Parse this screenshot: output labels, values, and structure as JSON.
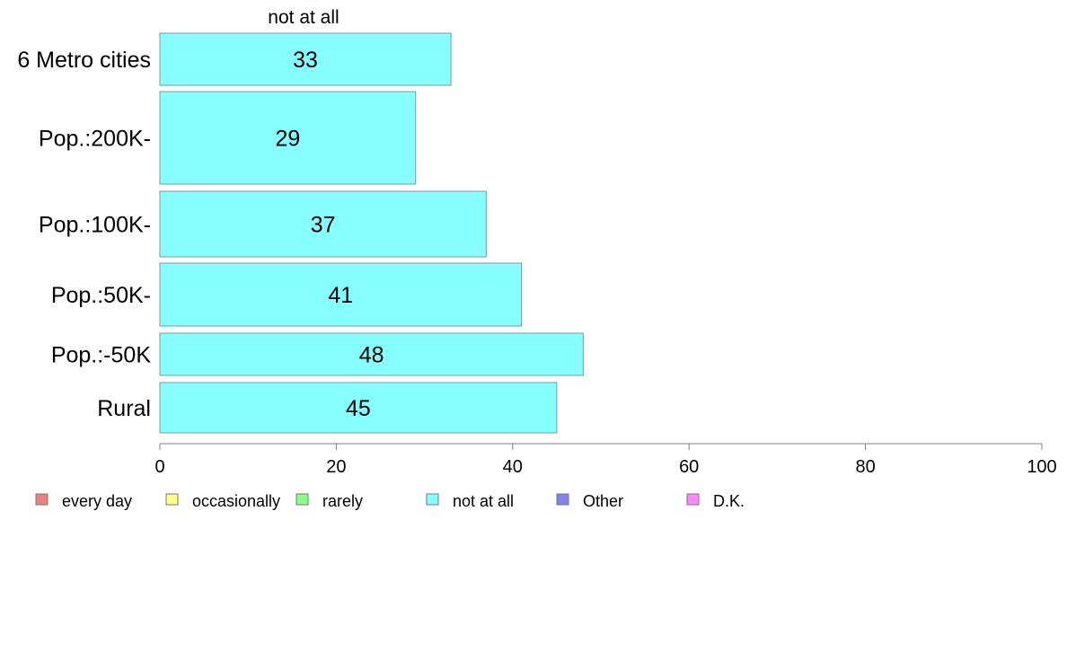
{
  "chart_data": {
    "type": "bar",
    "orientation": "horizontal",
    "stacked": true,
    "column_header": "not at all",
    "categories": [
      "6 Metro cities",
      "Pop.:200K-",
      "Pop.:100K-",
      "Pop.:50K-",
      "Pop.:-50K",
      "Rural"
    ],
    "series": [
      {
        "name": "not at all",
        "color": "#88ffff",
        "values": [
          33,
          29,
          37,
          41,
          48,
          45
        ],
        "labels": [
          "33",
          "29",
          "37",
          "41",
          "48",
          "45"
        ]
      }
    ],
    "xlim": [
      0,
      100
    ],
    "xticks": [
      0,
      20,
      40,
      60,
      80,
      100
    ],
    "grid": false,
    "legend_position": "bottom",
    "legend": [
      {
        "label": "every day",
        "color": "#f08080"
      },
      {
        "label": "occasionally",
        "color": "#ffff88"
      },
      {
        "label": "rarely",
        "color": "#88ff88"
      },
      {
        "label": "not at all",
        "color": "#88ffff"
      },
      {
        "label": "Other",
        "color": "#8080f0"
      },
      {
        "label": "D.K.",
        "color": "#ff88ff"
      }
    ]
  }
}
